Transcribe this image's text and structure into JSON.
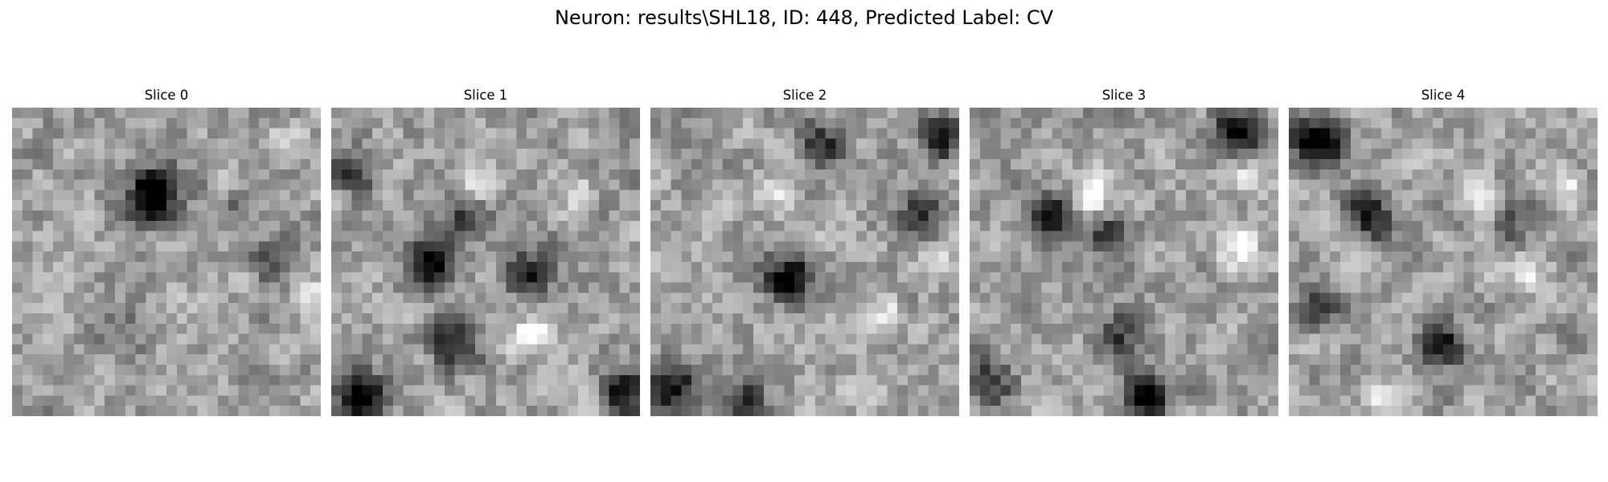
{
  "figure": {
    "title": "Neuron: results\\SHL18, ID: 448, Predicted Label: CV"
  },
  "colormap": "gray",
  "panels": [
    {
      "title": "Slice 0",
      "seed": 11,
      "dark_spots": [
        [
          0.48,
          0.25,
          0.9
        ],
        [
          0.42,
          0.32,
          0.6
        ],
        [
          0.35,
          0.72,
          0.35
        ],
        [
          0.75,
          0.32,
          0.3
        ],
        [
          0.86,
          0.52,
          0.35
        ]
      ],
      "bright_spots": [
        [
          0.97,
          0.62,
          0.6
        ],
        [
          0.92,
          0.08,
          0.35
        ]
      ]
    },
    {
      "title": "Slice 1",
      "seed": 23,
      "dark_spots": [
        [
          0.33,
          0.5,
          0.9
        ],
        [
          0.4,
          0.77,
          0.8
        ],
        [
          0.09,
          0.95,
          0.9
        ],
        [
          0.97,
          0.93,
          0.85
        ],
        [
          0.64,
          0.54,
          0.7
        ],
        [
          0.07,
          0.2,
          0.5
        ],
        [
          0.43,
          0.35,
          0.6
        ]
      ],
      "bright_spots": [
        [
          0.65,
          0.75,
          0.9
        ],
        [
          0.47,
          0.25,
          0.7
        ],
        [
          0.78,
          0.25,
          0.5
        ]
      ]
    },
    {
      "title": "Slice 2",
      "seed": 37,
      "dark_spots": [
        [
          0.45,
          0.55,
          0.9
        ],
        [
          0.55,
          0.1,
          0.6
        ],
        [
          0.96,
          0.08,
          0.8
        ],
        [
          0.9,
          0.35,
          0.6
        ],
        [
          0.06,
          0.92,
          0.8
        ],
        [
          0.3,
          0.95,
          0.5
        ]
      ],
      "bright_spots": [
        [
          0.95,
          0.5,
          0.7
        ],
        [
          0.42,
          0.28,
          0.5
        ],
        [
          0.77,
          0.65,
          0.4
        ]
      ]
    },
    {
      "title": "Slice 3",
      "seed": 53,
      "dark_spots": [
        [
          0.88,
          0.07,
          0.9
        ],
        [
          0.25,
          0.35,
          0.7
        ],
        [
          0.58,
          0.95,
          0.95
        ],
        [
          0.45,
          0.42,
          0.55
        ],
        [
          0.05,
          0.9,
          0.6
        ],
        [
          0.48,
          0.75,
          0.5
        ]
      ],
      "bright_spots": [
        [
          0.38,
          0.28,
          0.8
        ],
        [
          0.88,
          0.45,
          0.7
        ],
        [
          0.93,
          0.22,
          0.5
        ]
      ]
    },
    {
      "title": "Slice 4",
      "seed": 71,
      "dark_spots": [
        [
          0.08,
          0.1,
          0.95
        ],
        [
          0.25,
          0.35,
          0.7
        ],
        [
          0.5,
          0.78,
          0.75
        ],
        [
          0.72,
          0.35,
          0.5
        ],
        [
          0.1,
          0.65,
          0.5
        ]
      ],
      "bright_spots": [
        [
          0.65,
          0.3,
          0.8
        ],
        [
          0.9,
          0.25,
          0.7
        ],
        [
          0.8,
          0.55,
          0.5
        ],
        [
          0.3,
          0.95,
          0.6
        ]
      ]
    }
  ]
}
